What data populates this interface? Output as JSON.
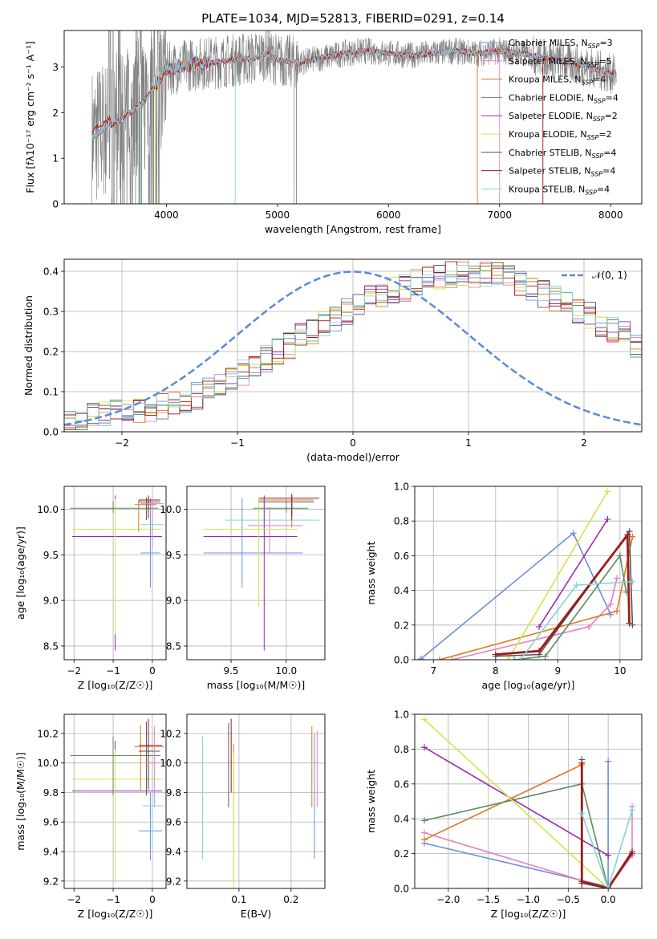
{
  "title": "PLATE=1034, MJD=52813, FIBERID=0291, z=0.14",
  "series_colors": [
    "#6a8fdc",
    "#e57fbf",
    "#e0771f",
    "#5d8a5d",
    "#9a2aa8",
    "#cde84a",
    "#555555",
    "#9e1a1a",
    "#7fd6d6"
  ],
  "chart_data": [
    {
      "type": "line",
      "panel": "spectrum",
      "xlabel": "wavelength [Angstrom, rest frame]",
      "ylabel": "Flux [fλ10⁻¹⁷ erg cm⁻² s⁻¹ A⁻¹]",
      "xlim": [
        3080,
        8280
      ],
      "ylim": [
        0,
        3.8
      ],
      "xticks": [
        4000,
        5000,
        6000,
        7000,
        8000
      ],
      "yticks": [
        0,
        1,
        2,
        3
      ],
      "legend": [
        "Chabrier MILES, N_SSP=3",
        "Salpeter MILES, N_SSP=5",
        "Kroupa MILES, N_SSP=4",
        "Chabrier ELODIE, N_SSP=4",
        "Salpeter ELODIE, N_SSP=2",
        "Kroupa ELODIE, N_SSP=2",
        "Chabrier STELIB, N_SSP=4",
        "Salpeter STELIB, N_SSP=4",
        "Kroupa STELIB, N_SSP=4"
      ],
      "legend_position": "right",
      "model_x": [
        3330,
        3450,
        3600,
        3800,
        4000,
        4200,
        4400,
        4600,
        4800,
        4900,
        5000,
        5200,
        5400,
        5600,
        5800,
        6000,
        6200,
        6400,
        6600,
        6800,
        7000,
        7200,
        7400,
        7600,
        7800,
        8000
      ],
      "model_y": [
        1.45,
        1.65,
        1.85,
        2.25,
        2.95,
        3.05,
        3.1,
        3.15,
        3.2,
        3.3,
        3.15,
        3.1,
        3.2,
        3.3,
        3.35,
        3.3,
        3.25,
        3.3,
        3.35,
        3.3,
        3.35,
        3.3,
        3.2,
        3.1,
        3.0,
        2.85
      ]
    },
    {
      "type": "bar",
      "panel": "residual_histogram",
      "xlabel": "(data-model)/error",
      "ylabel": "Normed distribution",
      "xlim": [
        -2.5,
        2.5
      ],
      "ylim": [
        0,
        0.43
      ],
      "xticks": [
        -2,
        -1,
        0,
        1,
        2
      ],
      "yticks": [
        0.0,
        0.1,
        0.2,
        0.3,
        0.4
      ],
      "grid": true,
      "legend": [
        "𝒩(0, 1)"
      ],
      "legend_position": "top-right",
      "bin_width": 0.1,
      "bin_start": -2.5,
      "hist_base": [
        0.03,
        0.035,
        0.04,
        0.04,
        0.045,
        0.05,
        0.055,
        0.06,
        0.065,
        0.07,
        0.08,
        0.09,
        0.1,
        0.115,
        0.13,
        0.145,
        0.16,
        0.18,
        0.2,
        0.215,
        0.235,
        0.25,
        0.27,
        0.285,
        0.3,
        0.31,
        0.33,
        0.34,
        0.355,
        0.36,
        0.37,
        0.38,
        0.385,
        0.39,
        0.395,
        0.395,
        0.39,
        0.39,
        0.38,
        0.37,
        0.36,
        0.345,
        0.33,
        0.32,
        0.3,
        0.29,
        0.27,
        0.255,
        0.24,
        0.22,
        0.205,
        0.19,
        0.17,
        0.155,
        0.145,
        0.13,
        0.115,
        0.105,
        0.095,
        0.085,
        0.075,
        0.068,
        0.06,
        0.055,
        0.05,
        0.045,
        0.04,
        0.035,
        0.03,
        0.028
      ],
      "gaussian": "N(0,1)"
    },
    {
      "type": "scatter",
      "panel": "age_vs_Z",
      "xlabel": "Z [log₁₀(Z/Z☉)]",
      "ylabel": "age  [log₁₀(age/yr)]",
      "xlim": [
        -2.25,
        0.35
      ],
      "ylim": [
        8.35,
        10.25
      ],
      "xticks": [
        -2,
        -1,
        0
      ],
      "yticks": [
        8.5,
        9.0,
        9.5,
        10.0
      ],
      "grid": true,
      "errorbars": [
        {
          "x": -0.05,
          "y": 9.52,
          "xerr": [
            0.25,
            0.25
          ],
          "yerr": [
            0.38,
            0.6
          ],
          "c": 0
        },
        {
          "x": 0.0,
          "y": 9.83,
          "xerr": [
            0.3,
            0.3
          ],
          "yerr": [
            0.2,
            0.3
          ],
          "c": 8
        },
        {
          "x": -0.95,
          "y": 9.7,
          "xerr": [
            1.1,
            1.2
          ],
          "yerr": [
            1.25,
            0.45
          ],
          "c": 4
        },
        {
          "x": -0.95,
          "y": 9.78,
          "xerr": [
            1.1,
            1.2
          ],
          "yerr": [
            1.15,
            0.33
          ],
          "c": 5
        },
        {
          "x": -1.0,
          "y": 10.01,
          "xerr": [
            1.1,
            1.15
          ],
          "yerr": [
            0.05,
            0.08
          ],
          "c": 3
        },
        {
          "x": -0.35,
          "y": 10.05,
          "xerr": [
            0.1,
            0.45
          ],
          "yerr": [
            0.3,
            0.05
          ],
          "c": 2
        },
        {
          "x": -0.15,
          "y": 10.08,
          "xerr": [
            0.2,
            0.35
          ],
          "yerr": [
            0.2,
            0.05
          ],
          "c": 6
        },
        {
          "x": -0.1,
          "y": 10.1,
          "xerr": [
            0.25,
            0.3
          ],
          "yerr": [
            0.2,
            0.05
          ],
          "c": 7
        },
        {
          "x": 0.0,
          "y": 10.06,
          "xerr": [
            0.3,
            0.3
          ],
          "yerr": [
            0.5,
            0.05
          ],
          "c": 1
        }
      ]
    },
    {
      "type": "scatter",
      "panel": "age_vs_mass",
      "xlabel": "mass [log₁₀(M/M☉)]",
      "ylabel": "",
      "xlim": [
        9.1,
        10.35
      ],
      "ylim": [
        8.35,
        10.25
      ],
      "xticks": [
        9.5,
        10.0
      ],
      "yticks": [
        8.5,
        9.0,
        9.5,
        10.0
      ],
      "grid": true,
      "errorbars": [
        {
          "x": 9.6,
          "y": 9.52,
          "xerr": [
            0.35,
            0.55
          ],
          "yerr": [
            0.38,
            0.6
          ],
          "c": 0
        },
        {
          "x": 9.8,
          "y": 9.88,
          "xerr": [
            0.35,
            0.5
          ],
          "yerr": [
            0.2,
            0.25
          ],
          "c": 8
        },
        {
          "x": 9.85,
          "y": 9.82,
          "xerr": [
            0.2,
            0.3
          ],
          "yerr": [
            0.3,
            0.2
          ],
          "c": 1
        },
        {
          "x": 9.8,
          "y": 9.7,
          "xerr": [
            0.55,
            0.3
          ],
          "yerr": [
            1.25,
            0.45
          ],
          "c": 4
        },
        {
          "x": 9.75,
          "y": 9.78,
          "xerr": [
            0.5,
            0.35
          ],
          "yerr": [
            0.85,
            0.33
          ],
          "c": 5
        },
        {
          "x": 10.0,
          "y": 10.01,
          "xerr": [
            0.3,
            0.2
          ],
          "yerr": [
            0.05,
            0.08
          ],
          "c": 3
        },
        {
          "x": 10.05,
          "y": 10.1,
          "xerr": [
            0.3,
            0.2
          ],
          "yerr": [
            0.3,
            0.05
          ],
          "c": 2
        },
        {
          "x": 10.05,
          "y": 10.08,
          "xerr": [
            0.3,
            0.2
          ],
          "yerr": [
            0.2,
            0.05
          ],
          "c": 6
        },
        {
          "x": 10.05,
          "y": 10.12,
          "xerr": [
            0.3,
            0.25
          ],
          "yerr": [
            0.2,
            0.05
          ],
          "c": 7
        }
      ]
    },
    {
      "type": "line",
      "panel": "weight_vs_age",
      "xlabel": "age  [log₁₀(age/yr)]",
      "ylabel": "mass weight",
      "xlim": [
        6.7,
        10.35
      ],
      "ylim": [
        0,
        1.0
      ],
      "xticks": [
        7,
        8,
        9,
        10
      ],
      "yticks": [
        0.0,
        0.2,
        0.4,
        0.6,
        0.8,
        1.0
      ],
      "grid": true,
      "series": [
        {
          "c": 0,
          "x": [
            6.8,
            9.25,
            9.85
          ],
          "y": [
            0.005,
            0.73,
            0.26
          ]
        },
        {
          "c": 1,
          "x": [
            7.3,
            9.5,
            9.85,
            9.95
          ],
          "y": [
            0.0,
            0.19,
            0.32,
            0.47
          ]
        },
        {
          "c": 2,
          "x": [
            7.1,
            9.95,
            10.2
          ],
          "y": [
            0.0,
            0.28,
            0.71
          ]
        },
        {
          "c": 3,
          "x": [
            8.3,
            8.8,
            10.0,
            10.1
          ],
          "y": [
            0.0,
            0.02,
            0.6,
            0.39
          ]
        },
        {
          "c": 4,
          "x": [
            8.7,
            9.8
          ],
          "y": [
            0.19,
            0.81
          ]
        },
        {
          "c": 5,
          "x": [
            8.2,
            9.8
          ],
          "y": [
            0.0,
            0.97
          ]
        },
        {
          "c": 6,
          "x": [
            8.0,
            8.7,
            10.15,
            10.2
          ],
          "y": [
            0.02,
            0.03,
            0.74,
            0.2
          ]
        },
        {
          "c": 7,
          "x": [
            8.0,
            8.7,
            10.12,
            10.15
          ],
          "y": [
            0.03,
            0.05,
            0.72,
            0.21
          ]
        },
        {
          "c": 8,
          "x": [
            8.4,
            9.3,
            10.2
          ],
          "y": [
            0.0,
            0.43,
            0.45
          ]
        }
      ]
    },
    {
      "type": "scatter",
      "panel": "mass_vs_Z",
      "xlabel": "Z [log₁₀(Z/Z☉)]",
      "ylabel": "mass [log₁₀(M/M☉)]",
      "xlim": [
        -2.25,
        0.35
      ],
      "ylim": [
        9.15,
        10.33
      ],
      "xticks": [
        -2,
        -1,
        0
      ],
      "yticks": [
        9.2,
        9.4,
        9.6,
        9.8,
        10.0,
        10.2
      ],
      "grid": true,
      "errorbars": [
        {
          "x": -0.05,
          "y": 9.54,
          "xerr": [
            0.3,
            0.3
          ],
          "yerr": [
            0.2,
            0.26
          ],
          "c": 0
        },
        {
          "x": 0.0,
          "y": 9.71,
          "xerr": [
            0.25,
            0.3
          ],
          "yerr": [
            0.3,
            0.5
          ],
          "c": 8
        },
        {
          "x": -0.95,
          "y": 9.81,
          "xerr": [
            1.1,
            1.2
          ],
          "yerr": [
            0.4,
            0.34
          ],
          "c": 4
        },
        {
          "x": -0.95,
          "y": 9.89,
          "xerr": [
            1.1,
            1.2
          ],
          "yerr": [
            0.7,
            0.2
          ],
          "c": 5
        },
        {
          "x": -1.0,
          "y": 10.05,
          "xerr": [
            1.1,
            1.2
          ],
          "yerr": [
            0.27,
            0.13
          ],
          "c": 3
        },
        {
          "x": -0.3,
          "y": 10.11,
          "xerr": [
            0.15,
            0.6
          ],
          "yerr": [
            0.3,
            0.15
          ],
          "c": 2
        },
        {
          "x": -0.15,
          "y": 10.08,
          "xerr": [
            0.2,
            0.35
          ],
          "yerr": [
            0.3,
            0.2
          ],
          "c": 6
        },
        {
          "x": -0.1,
          "y": 10.12,
          "xerr": [
            0.25,
            0.35
          ],
          "yerr": [
            0.3,
            0.18
          ],
          "c": 7
        },
        {
          "x": 0.05,
          "y": 10.0,
          "xerr": [
            0.25,
            0.25
          ],
          "yerr": [
            0.3,
            0.25
          ],
          "c": 1
        }
      ]
    },
    {
      "type": "scatter",
      "panel": "mass_vs_EBV",
      "xlabel": "E(B-V)",
      "ylabel": "",
      "xlim": [
        0.0,
        0.265
      ],
      "ylim": [
        9.15,
        10.33
      ],
      "xticks": [
        0.1,
        0.2
      ],
      "yticks": [
        9.2,
        9.4,
        9.6,
        9.8,
        10.0,
        10.2
      ],
      "grid": true,
      "errorbars": [
        {
          "x": 0.03,
          "y": 9.75,
          "yerr": [
            0.4,
            0.43
          ],
          "c": 8
        },
        {
          "x": 0.08,
          "y": 10.0,
          "yerr": [
            0.3,
            0.27
          ],
          "c": 6
        },
        {
          "x": 0.085,
          "y": 10.05,
          "yerr": [
            0.25,
            0.25
          ],
          "c": 7
        },
        {
          "x": 0.09,
          "y": 9.7,
          "yerr": [
            0.5,
            0.43
          ],
          "c": 2
        },
        {
          "x": 0.09,
          "y": 9.62,
          "yerr": [
            0.5,
            0.45
          ],
          "c": 5
        },
        {
          "x": 0.24,
          "y": 10.0,
          "yerr": [
            0.3,
            0.25
          ],
          "c": 2
        },
        {
          "x": 0.245,
          "y": 9.8,
          "yerr": [
            0.45,
            0.4
          ],
          "c": 0
        },
        {
          "x": 0.25,
          "y": 10.0,
          "yerr": [
            0.3,
            0.22
          ],
          "c": 1
        }
      ]
    },
    {
      "type": "line",
      "panel": "weight_vs_Z",
      "xlabel": "Z [log₁₀(Z/Z☉)]",
      "ylabel": "mass weight",
      "xlim": [
        -2.42,
        0.42
      ],
      "ylim": [
        0,
        1.0
      ],
      "xticks": [
        -2.0,
        -1.5,
        -1.0,
        -0.5,
        0.0
      ],
      "yticks": [
        0.0,
        0.2,
        0.4,
        0.6,
        0.8,
        1.0
      ],
      "grid": true,
      "series": [
        {
          "c": 0,
          "x": [
            -2.3,
            0.0,
            0.0
          ],
          "y": [
            0.26,
            0.01,
            0.73
          ]
        },
        {
          "c": 1,
          "x": [
            -2.3,
            0.0,
            0.3,
            0.3
          ],
          "y": [
            0.32,
            0.0,
            0.19,
            0.47
          ]
        },
        {
          "c": 2,
          "x": [
            -2.3,
            -0.33,
            -0.33
          ],
          "y": [
            0.28,
            0.71,
            0.0
          ]
        },
        {
          "c": 3,
          "x": [
            -2.3,
            -0.33,
            0.0
          ],
          "y": [
            0.39,
            0.6,
            0.0
          ]
        },
        {
          "c": 4,
          "x": [
            -2.3,
            0.0
          ],
          "y": [
            0.81,
            0.19
          ]
        },
        {
          "c": 5,
          "x": [
            -2.3,
            0.0
          ],
          "y": [
            0.97,
            0.0
          ]
        },
        {
          "c": 6,
          "x": [
            -0.33,
            -0.33,
            0.0,
            0.3
          ],
          "y": [
            0.74,
            0.03,
            0.0,
            0.2
          ]
        },
        {
          "c": 7,
          "x": [
            -0.33,
            -0.33,
            0.0,
            0.3
          ],
          "y": [
            0.72,
            0.04,
            0.0,
            0.21
          ]
        },
        {
          "c": 8,
          "x": [
            -0.33,
            0.0,
            0.3
          ],
          "y": [
            0.43,
            0.0,
            0.45
          ]
        }
      ]
    }
  ]
}
